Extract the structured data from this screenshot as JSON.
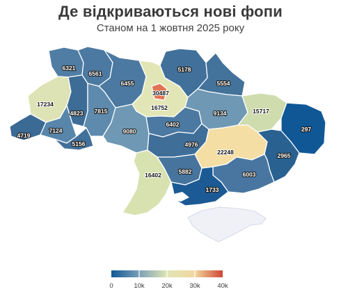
{
  "header": {
    "title": "Де відкриваються нові фопи",
    "subtitle": "Станом на 1 жовтня 2025 року"
  },
  "map": {
    "metric": "new individual entrepreneurs (ФОП) opened",
    "regions": [
      {
        "id": "volyn",
        "value": 6321,
        "label": "6321",
        "color": "#4f7da4"
      },
      {
        "id": "rivne",
        "value": 6561,
        "label": "6561",
        "color": "#4b79a1"
      },
      {
        "id": "zhytomyr",
        "value": 6455,
        "label": "6455",
        "color": "#4b79a1"
      },
      {
        "id": "kyiv-oblast",
        "value": 16752,
        "label": "16752",
        "color": "#e2e6b6"
      },
      {
        "id": "kyiv-city",
        "value": 30487,
        "label": "30487",
        "color": "#e07555"
      },
      {
        "id": "chernihiv",
        "value": 5178,
        "label": "5178",
        "color": "#41709a"
      },
      {
        "id": "sumy",
        "value": 5554,
        "label": "5554",
        "color": "#43739b"
      },
      {
        "id": "lviv",
        "value": 17234,
        "label": "17234",
        "color": "#dde3b4"
      },
      {
        "id": "ternopil",
        "value": 4823,
        "label": "4823",
        "color": "#3d6c96"
      },
      {
        "id": "khmelnytskyi",
        "value": 7815,
        "label": "7815",
        "color": "#5d8aad"
      },
      {
        "id": "vinnytsia",
        "value": 9080,
        "label": "9080",
        "color": "#6f98b4"
      },
      {
        "id": "cherkasy",
        "value": 6402,
        "label": "6402",
        "color": "#4b79a1"
      },
      {
        "id": "poltava",
        "value": 9134,
        "label": "9134",
        "color": "#6f98b4"
      },
      {
        "id": "kharkiv",
        "value": 15717,
        "label": "15717",
        "color": "#cfdcae"
      },
      {
        "id": "luhansk",
        "value": 297,
        "label": "297",
        "color": "#105796"
      },
      {
        "id": "zakarpattia",
        "value": 4719,
        "label": "4719",
        "color": "#3b6a95"
      },
      {
        "id": "ivano-frankivsk",
        "value": 7124,
        "label": "7124",
        "color": "#5886aa"
      },
      {
        "id": "chernivtsi",
        "value": 5156,
        "label": "5156",
        "color": "#41709a"
      },
      {
        "id": "kirovohrad",
        "value": 4976,
        "label": "4976",
        "color": "#3f6e98"
      },
      {
        "id": "dnipropetrovsk",
        "value": 22248,
        "label": "22248",
        "color": "#f4dea4"
      },
      {
        "id": "donetsk",
        "value": 2965,
        "label": "2965",
        "color": "#296191"
      },
      {
        "id": "odesa",
        "value": 16402,
        "label": "16402",
        "color": "#d8e2b0"
      },
      {
        "id": "mykolaiv",
        "value": 5882,
        "label": "5882",
        "color": "#46749d"
      },
      {
        "id": "zaporizhzhia",
        "value": 6003,
        "label": "6003",
        "color": "#4876a0"
      },
      {
        "id": "kherson",
        "value": 1733,
        "label": "1733",
        "color": "#1b5a94"
      },
      {
        "id": "crimea",
        "value": null,
        "label": "",
        "color": "#eff1f7"
      }
    ]
  },
  "legend": {
    "min": 0,
    "max": 40000,
    "ticks": [
      "0",
      "10k",
      "20k",
      "30k",
      "40k"
    ],
    "colors": [
      "#105796",
      "#7aa0b7",
      "#dfe6b5",
      "#f2d69f",
      "#d04533"
    ]
  }
}
